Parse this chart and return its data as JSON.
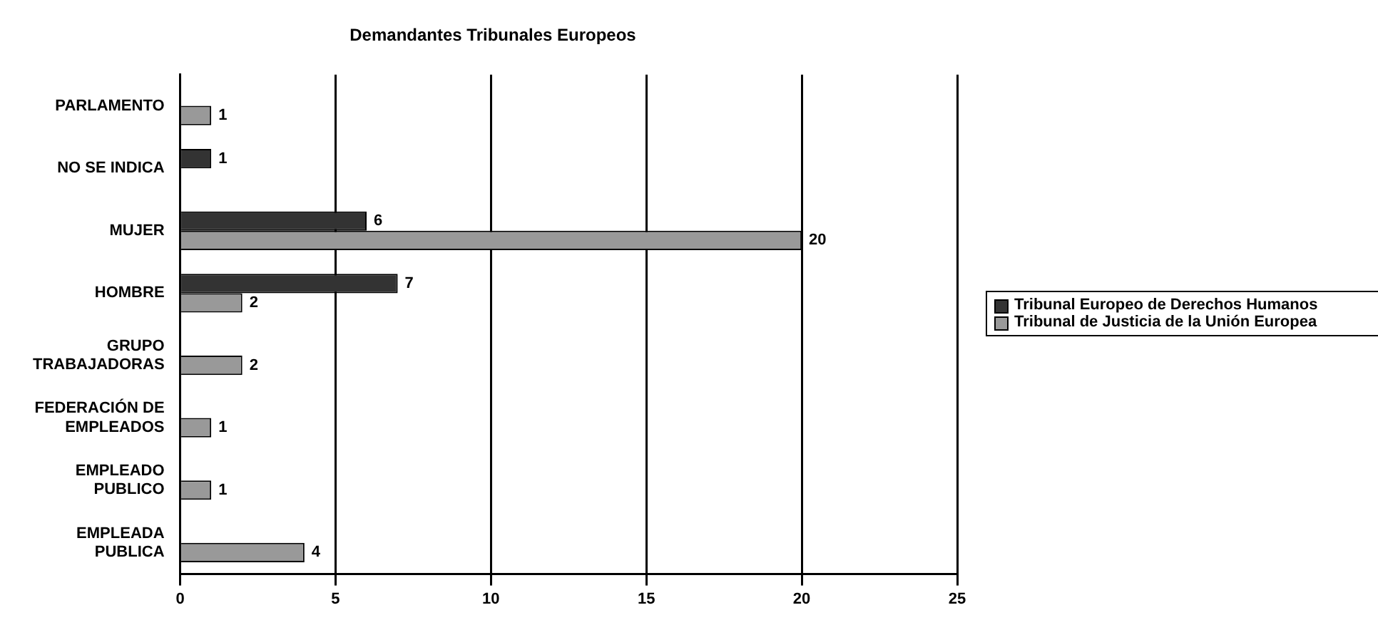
{
  "chart_data": {
    "type": "bar",
    "orientation": "horizontal",
    "title": "Demandantes Tribunales Europeos",
    "categories": [
      "PARLAMENTO",
      "NO SE INDICA",
      "MUJER",
      "HOMBRE",
      "GRUPO TRABAJADORAS",
      "FEDERACIÓN DE EMPLEADOS",
      "EMPLEADO PUBLICO",
      "EMPLEADA PUBLICA"
    ],
    "series": [
      {
        "name": "Tribunal Europeo de Derechos Humanos",
        "color": "#333333",
        "values": [
          null,
          1,
          6,
          7,
          null,
          null,
          null,
          null
        ]
      },
      {
        "name": "Tribunal de Justicia de la Unión Europea",
        "color": "#999999",
        "values": [
          1,
          null,
          20,
          2,
          2,
          1,
          1,
          4
        ]
      }
    ],
    "xlim": [
      0,
      25
    ],
    "xticks": [
      0,
      5,
      10,
      15,
      20,
      25
    ],
    "grid": "x",
    "legend": "right",
    "data_labels": true
  }
}
